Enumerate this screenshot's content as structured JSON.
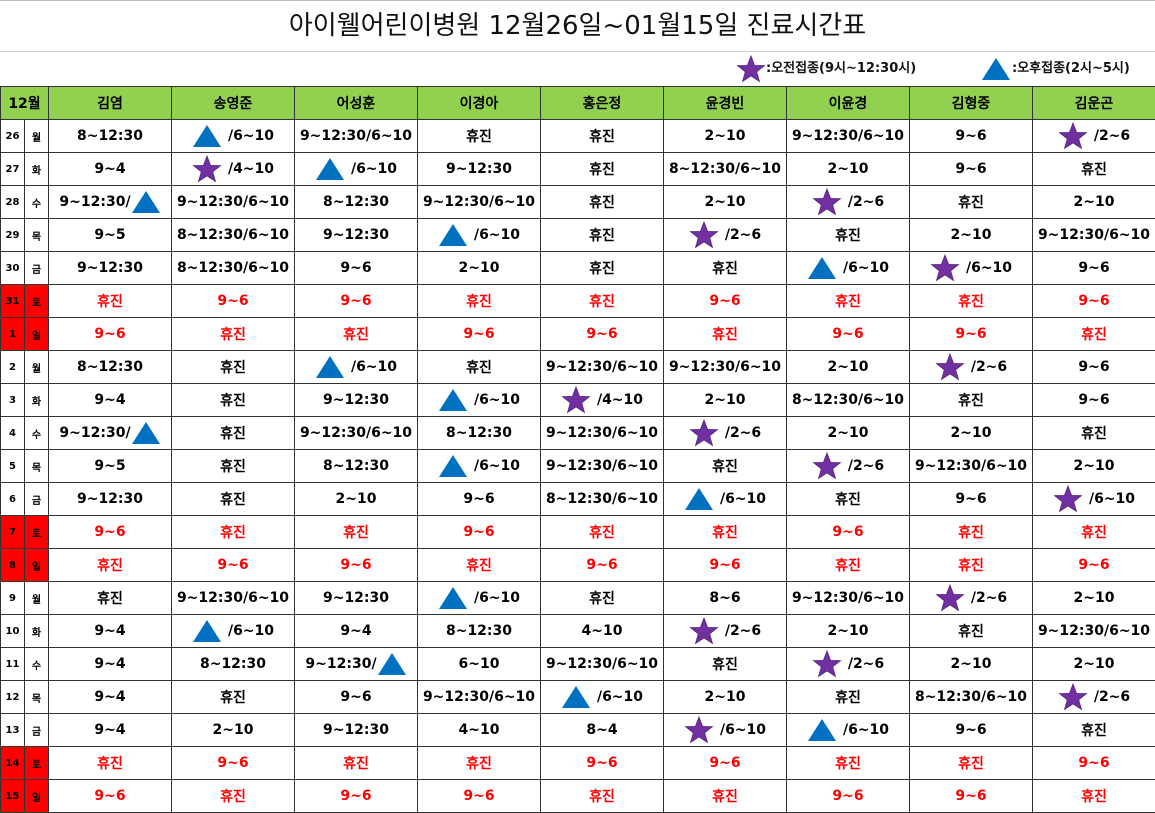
{
  "title": "아이웰어린이병원   12월26일~01월15일   진료시간표",
  "legend": {
    "am_label": ":오전접종(9시~12:30시)",
    "pm_label": ":오후접종(2시~5시)",
    "am_icon": "purple-star-icon",
    "pm_icon": "blue-triangle-icon",
    "am_color": "#7030a0",
    "pm_color": "#0070c0"
  },
  "colors": {
    "header_bg": "#92d050",
    "holiday_bg": "#ff0000",
    "holiday_text": "#ff0000"
  },
  "header": {
    "month": "12월",
    "doctors": [
      "김염",
      "송영준",
      "어성훈",
      "이경아",
      "홍은정",
      "윤경빈",
      "이윤경",
      "김형중",
      "김운곤"
    ]
  },
  "rows": [
    {
      "day": "26",
      "dow": "월",
      "holiday": false,
      "cells": [
        "8~12:30",
        "T|/6~10",
        "9~12:30/6~10",
        "휴진",
        "휴진",
        "2~10",
        "9~12:30/6~10",
        "9~6",
        "S|/2~6"
      ]
    },
    {
      "day": "27",
      "dow": "화",
      "holiday": false,
      "cells": [
        "9~4",
        "S|/4~10",
        "T|/6~10",
        "9~12:30",
        "휴진",
        "8~12:30/6~10",
        "2~10",
        "9~6",
        "휴진"
      ]
    },
    {
      "day": "28",
      "dow": "수",
      "holiday": false,
      "cells": [
        "9~12:30/|T",
        "9~12:30/6~10",
        "8~12:30",
        "9~12:30/6~10",
        "휴진",
        "2~10",
        "S|/2~6",
        "휴진",
        "2~10"
      ]
    },
    {
      "day": "29",
      "dow": "목",
      "holiday": false,
      "cells": [
        "9~5",
        "8~12:30/6~10",
        "9~12:30",
        "T|/6~10",
        "휴진",
        "S|/2~6",
        "휴진",
        "2~10",
        "9~12:30/6~10"
      ]
    },
    {
      "day": "30",
      "dow": "금",
      "holiday": false,
      "cells": [
        "9~12:30",
        "8~12:30/6~10",
        "9~6",
        "2~10",
        "휴진",
        "휴진",
        "T|/6~10",
        "S|/6~10",
        "9~6"
      ]
    },
    {
      "day": "31",
      "dow": "토",
      "holiday": true,
      "cells": [
        "휴진",
        "9~6",
        "9~6",
        "휴진",
        "휴진",
        "9~6",
        "휴진",
        "휴진",
        "9~6"
      ]
    },
    {
      "day": "1",
      "dow": "일",
      "holiday": true,
      "cells": [
        "9~6",
        "휴진",
        "휴진",
        "9~6",
        "9~6",
        "휴진",
        "9~6",
        "9~6",
        "휴진"
      ]
    },
    {
      "day": "2",
      "dow": "월",
      "holiday": false,
      "cells": [
        "8~12:30",
        "휴진",
        "T|/6~10",
        "휴진",
        "9~12:30/6~10",
        "9~12:30/6~10",
        "2~10",
        "S|/2~6",
        "9~6"
      ]
    },
    {
      "day": "3",
      "dow": "화",
      "holiday": false,
      "cells": [
        "9~4",
        "휴진",
        "9~12:30",
        "T|/6~10",
        "S|/4~10",
        "2~10",
        "8~12:30/6~10",
        "휴진",
        "9~6"
      ]
    },
    {
      "day": "4",
      "dow": "수",
      "holiday": false,
      "cells": [
        "9~12:30/|T",
        "휴진",
        "9~12:30/6~10",
        "8~12:30",
        "9~12:30/6~10",
        "S|/2~6",
        "2~10",
        "2~10",
        "휴진"
      ]
    },
    {
      "day": "5",
      "dow": "목",
      "holiday": false,
      "cells": [
        "9~5",
        "휴진",
        "8~12:30",
        "T|/6~10",
        "9~12:30/6~10",
        "휴진",
        "S|/2~6",
        "9~12:30/6~10",
        "2~10"
      ]
    },
    {
      "day": "6",
      "dow": "금",
      "holiday": false,
      "cells": [
        "9~12:30",
        "휴진",
        "2~10",
        "9~6",
        "8~12:30/6~10",
        "T|/6~10",
        "휴진",
        "9~6",
        "S|/6~10"
      ]
    },
    {
      "day": "7",
      "dow": "토",
      "holiday": true,
      "cells": [
        "9~6",
        "휴진",
        "휴진",
        "9~6",
        "휴진",
        "휴진",
        "9~6",
        "휴진",
        "휴진"
      ]
    },
    {
      "day": "8",
      "dow": "일",
      "holiday": true,
      "cells": [
        "휴진",
        "9~6",
        "9~6",
        "휴진",
        "9~6",
        "9~6",
        "휴진",
        "휴진",
        "9~6"
      ]
    },
    {
      "day": "9",
      "dow": "월",
      "holiday": false,
      "cells": [
        "휴진",
        "9~12:30/6~10",
        "9~12:30",
        "T|/6~10",
        "휴진",
        "8~6",
        "9~12:30/6~10",
        "S|/2~6",
        "2~10"
      ]
    },
    {
      "day": "10",
      "dow": "화",
      "holiday": false,
      "cells": [
        "9~4",
        "T|/6~10",
        "9~4",
        "8~12:30",
        "4~10",
        "S|/2~6",
        "2~10",
        "휴진",
        "9~12:30/6~10"
      ]
    },
    {
      "day": "11",
      "dow": "수",
      "holiday": false,
      "cells": [
        "9~4",
        "8~12:30",
        "9~12:30/|T",
        "6~10",
        "9~12:30/6~10",
        "휴진",
        "S|/2~6",
        "2~10",
        "2~10"
      ]
    },
    {
      "day": "12",
      "dow": "목",
      "holiday": false,
      "cells": [
        "9~4",
        "휴진",
        "9~6",
        "9~12:30/6~10",
        "T|/6~10",
        "2~10",
        "휴진",
        "8~12:30/6~10",
        "S|/2~6"
      ]
    },
    {
      "day": "13",
      "dow": "금",
      "holiday": false,
      "cells": [
        "9~4",
        "2~10",
        "9~12:30",
        "4~10",
        "8~4",
        "S|/6~10",
        "T|/6~10",
        "9~6",
        "휴진"
      ]
    },
    {
      "day": "14",
      "dow": "토",
      "holiday": true,
      "cells": [
        "휴진",
        "9~6",
        "휴진",
        "휴진",
        "9~6",
        "9~6",
        "휴진",
        "휴진",
        "9~6"
      ]
    },
    {
      "day": "15",
      "dow": "일",
      "holiday": true,
      "cells": [
        "9~6",
        "휴진",
        "9~6",
        "9~6",
        "휴진",
        "휴진",
        "9~6",
        "9~6",
        "휴진"
      ]
    }
  ]
}
